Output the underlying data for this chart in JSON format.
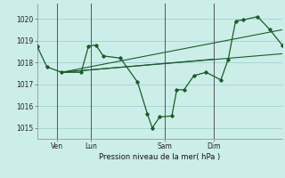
{
  "background_color": "#cceee8",
  "grid_color": "#99cccc",
  "line_color": "#1a5c2a",
  "ylabel_ticks": [
    1015,
    1016,
    1017,
    1018,
    1019,
    1020
  ],
  "xlabel": "Pression niveau de la mer( hPa )",
  "day_labels": [
    "Ven",
    "Lun",
    "Sam",
    "Dim"
  ],
  "ylim": [
    1014.5,
    1020.7
  ],
  "xlim": [
    0,
    100
  ],
  "day_vlines": [
    8,
    22,
    52,
    72
  ],
  "main_line": {
    "x": [
      0,
      4,
      10,
      18,
      21,
      24,
      27,
      34,
      41,
      45,
      47,
      50,
      55,
      57,
      60,
      64,
      69,
      75,
      78,
      81,
      84,
      90,
      95,
      100
    ],
    "y": [
      1018.75,
      1017.8,
      1017.55,
      1017.55,
      1018.75,
      1018.8,
      1018.3,
      1018.2,
      1017.1,
      1015.65,
      1015.0,
      1015.5,
      1015.55,
      1016.75,
      1016.75,
      1017.4,
      1017.55,
      1017.2,
      1018.15,
      1019.9,
      1019.95,
      1020.1,
      1019.5,
      1018.8
    ]
  },
  "trend_line1": {
    "x": [
      10,
      100
    ],
    "y": [
      1017.55,
      1019.5
    ]
  },
  "trend_line2": {
    "x": [
      10,
      72
    ],
    "y": [
      1017.55,
      1018.15
    ]
  },
  "trend_line3": {
    "x": [
      10,
      100
    ],
    "y": [
      1017.55,
      1018.4
    ]
  }
}
